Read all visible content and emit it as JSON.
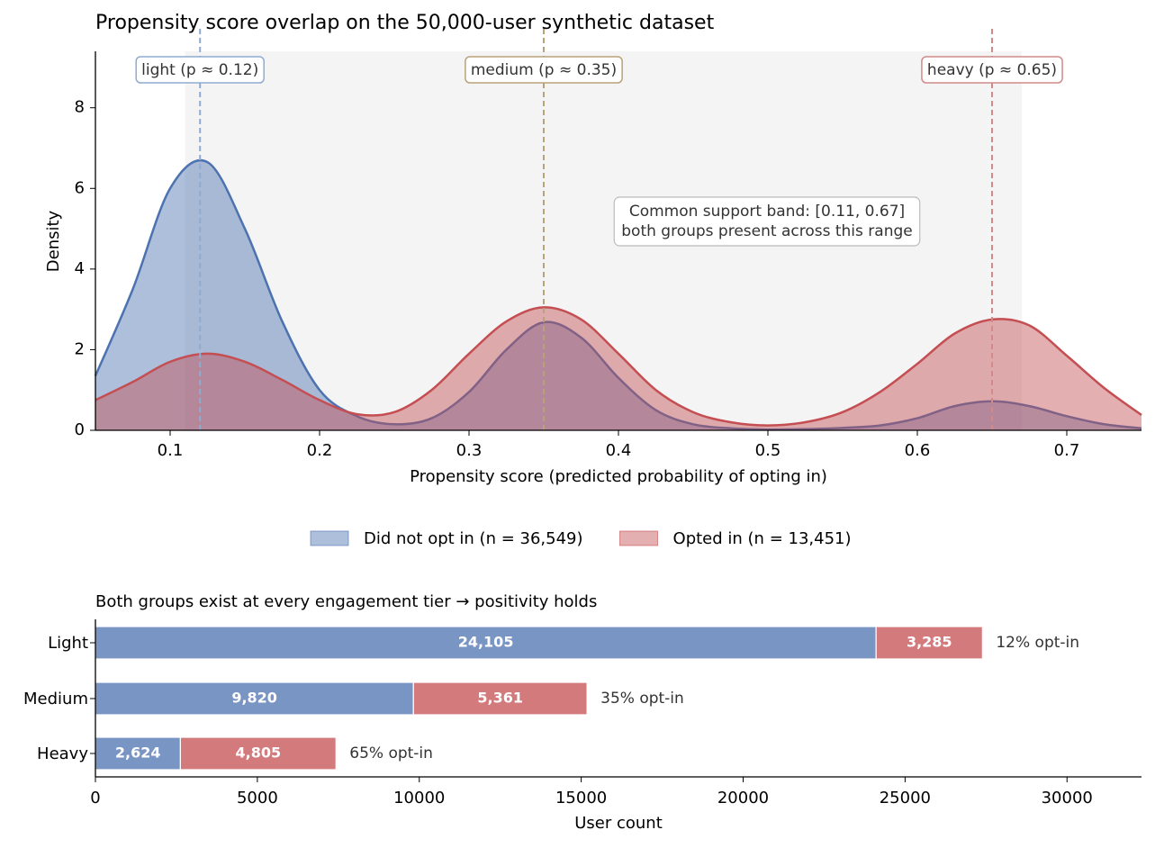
{
  "chart_data": [
    {
      "type": "density",
      "title": "Propensity score overlap on the 50,000-user synthetic dataset",
      "x_label": "Propensity score  (predicted probability of opting in)",
      "y_label": "Density",
      "x": [
        0.05,
        0.075,
        0.1,
        0.125,
        0.15,
        0.175,
        0.2,
        0.225,
        0.25,
        0.275,
        0.3,
        0.325,
        0.35,
        0.375,
        0.4,
        0.425,
        0.45,
        0.475,
        0.5,
        0.525,
        0.55,
        0.575,
        0.6,
        0.625,
        0.65,
        0.675,
        0.7,
        0.725,
        0.75
      ],
      "series": [
        {
          "name": "Did not opt in  (n = 36,549)",
          "color": "#4c72b0",
          "values": [
            1.35,
            3.5,
            6.0,
            6.65,
            5.0,
            2.7,
            1.0,
            0.35,
            0.15,
            0.3,
            0.95,
            2.0,
            2.68,
            2.3,
            1.3,
            0.5,
            0.15,
            0.05,
            0.02,
            0.03,
            0.06,
            0.12,
            0.3,
            0.6,
            0.72,
            0.6,
            0.35,
            0.15,
            0.05
          ]
        },
        {
          "name": "Opted in  (n = 13,451)",
          "color": "#c44e52",
          "values": [
            0.75,
            1.2,
            1.7,
            1.9,
            1.7,
            1.25,
            0.75,
            0.4,
            0.45,
            1.0,
            1.9,
            2.7,
            3.05,
            2.75,
            1.9,
            1.0,
            0.45,
            0.2,
            0.12,
            0.2,
            0.45,
            0.95,
            1.65,
            2.4,
            2.75,
            2.6,
            1.85,
            1.05,
            0.38
          ]
        }
      ],
      "markers": [
        {
          "x": 0.12,
          "label": "light  (p ≈ 0.12)",
          "color": "#8fabd0"
        },
        {
          "x": 0.35,
          "label": "medium  (p ≈ 0.35)",
          "color": "#b8a27a"
        },
        {
          "x": 0.65,
          "label": "heavy  (p ≈ 0.65)",
          "color": "#d08a8a"
        }
      ],
      "support_band": [
        0.11,
        0.67
      ],
      "annotation": [
        "Common support band: [0.11, 0.67]",
        "both groups present across this range"
      ],
      "xlim": [
        0.05,
        0.75
      ],
      "xticks": [
        0.1,
        0.2,
        0.3,
        0.4,
        0.5,
        0.6,
        0.7
      ],
      "ylim": [
        0,
        9.4
      ],
      "yticks": [
        0,
        2,
        4,
        6,
        8
      ]
    },
    {
      "type": "stacked_hbar",
      "title": "Both groups exist at every engagement tier → positivity holds",
      "x_label": "User count",
      "categories": [
        "Light",
        "Medium",
        "Heavy"
      ],
      "series": [
        {
          "color": "#4c72b0",
          "values": [
            24105,
            9820,
            2624
          ],
          "value_labels": [
            "24,105",
            "9,820",
            "2,624"
          ]
        },
        {
          "color": "#c44e52",
          "values": [
            3285,
            5361,
            4805
          ],
          "value_labels": [
            "3,285",
            "5,361",
            "4,805"
          ]
        }
      ],
      "notes": [
        "12% opt-in",
        "35% opt-in",
        "65% opt-in"
      ],
      "xlim": [
        0,
        32300
      ],
      "xticks": [
        0,
        5000,
        10000,
        15000,
        20000,
        25000,
        30000
      ]
    }
  ]
}
